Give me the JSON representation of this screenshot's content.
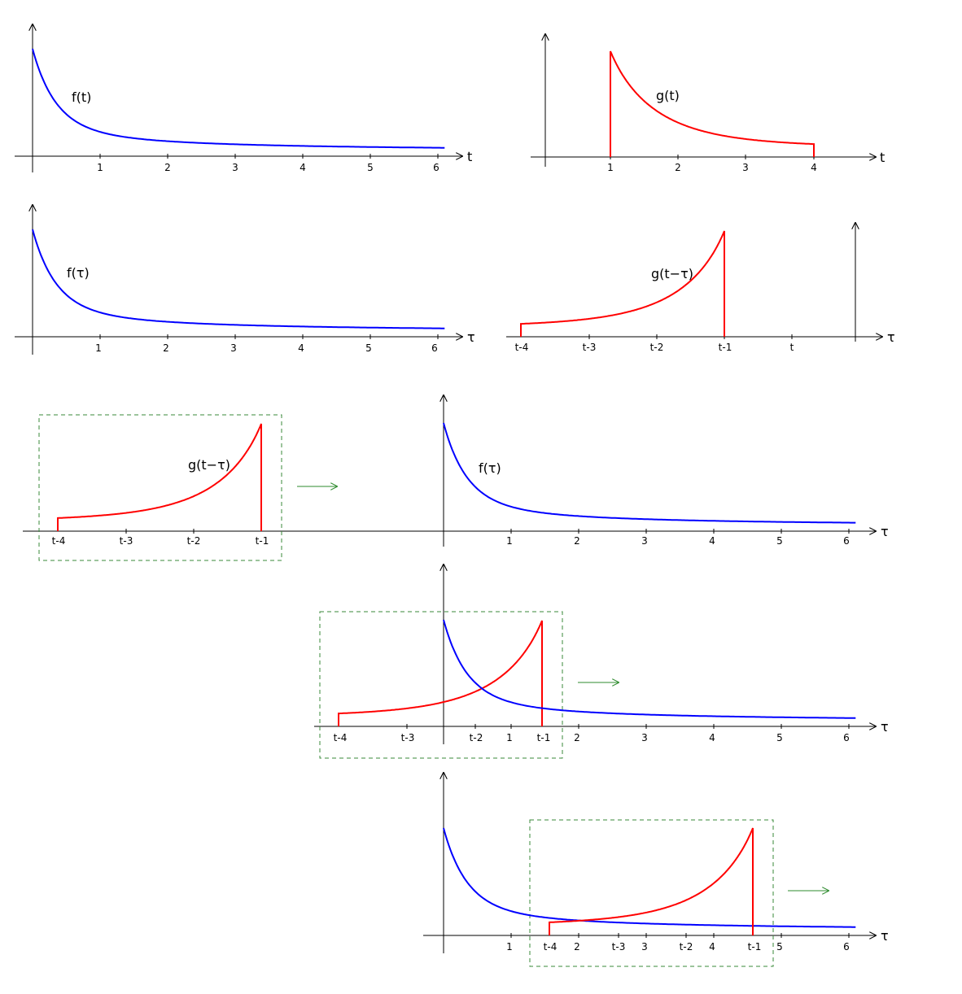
{
  "colors": {
    "f": "#0000ff",
    "g": "#ff0000",
    "frame": "#3a8a3a",
    "arrow": "#2e8b2e",
    "axis": "#000000"
  },
  "panels": {
    "p1": {
      "axis_label": "t",
      "curve_label": "f(t)",
      "ticks": [
        "1",
        "2",
        "3",
        "4",
        "5",
        "6"
      ]
    },
    "p2": {
      "axis_label": "t",
      "curve_label": "g(t)",
      "ticks": [
        "1",
        "2",
        "3",
        "4"
      ]
    },
    "p3": {
      "axis_label": "τ",
      "curve_label": "f(τ)",
      "ticks": [
        "1",
        "2",
        "3",
        "4",
        "5",
        "6"
      ]
    },
    "p4": {
      "axis_label": "τ",
      "curve_label": "g(t−τ)",
      "ticks": [
        "t-4",
        "t-3",
        "t-2",
        "t-1",
        "t"
      ]
    },
    "p5": {
      "axis_label": "τ",
      "f_label": "f(τ)",
      "g_label": "g(t−τ)",
      "f_ticks": [
        "1",
        "2",
        "3",
        "4",
        "5",
        "6"
      ],
      "g_ticks": [
        "t-4",
        "t-3",
        "t-2",
        "t-1"
      ]
    },
    "p6": {
      "axis_label": "τ",
      "f_ticks": [
        "1",
        "2",
        "3",
        "4",
        "5",
        "6"
      ],
      "g_ticks": [
        "t-4",
        "t-3",
        "t-2",
        "t-1"
      ]
    },
    "p7": {
      "axis_label": "τ",
      "f_ticks": [
        "1",
        "2",
        "3",
        "4",
        "5",
        "6"
      ],
      "g_ticks": [
        "t-4",
        "t-3",
        "t-2",
        "t-1"
      ]
    }
  }
}
